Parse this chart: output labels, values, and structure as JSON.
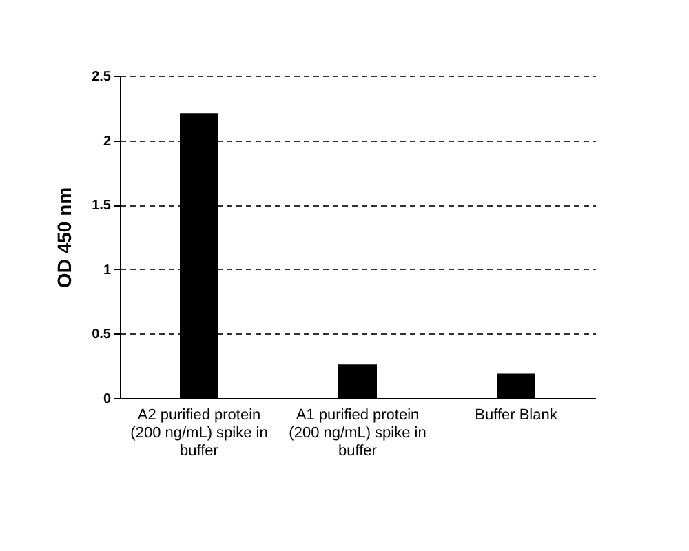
{
  "chart_data": {
    "type": "bar",
    "ylabel": "OD 450 nm",
    "categories": [
      "A2 purified protein (200 ng/mL) spike in buffer",
      "A1 purified protein (200 ng/mL) spike in buffer",
      "Buffer Blank"
    ],
    "values": [
      2.21,
      0.26,
      0.19
    ],
    "color": "#000000",
    "ylim": [
      0,
      2.5
    ],
    "yticks": [
      0,
      {
        "value": 0.5,
        "label": "0.5"
      },
      1,
      {
        "value": 1.5,
        "label": "1.5"
      },
      2,
      {
        "value": 2.5,
        "label": "2.5"
      }
    ],
    "grid": "y"
  }
}
